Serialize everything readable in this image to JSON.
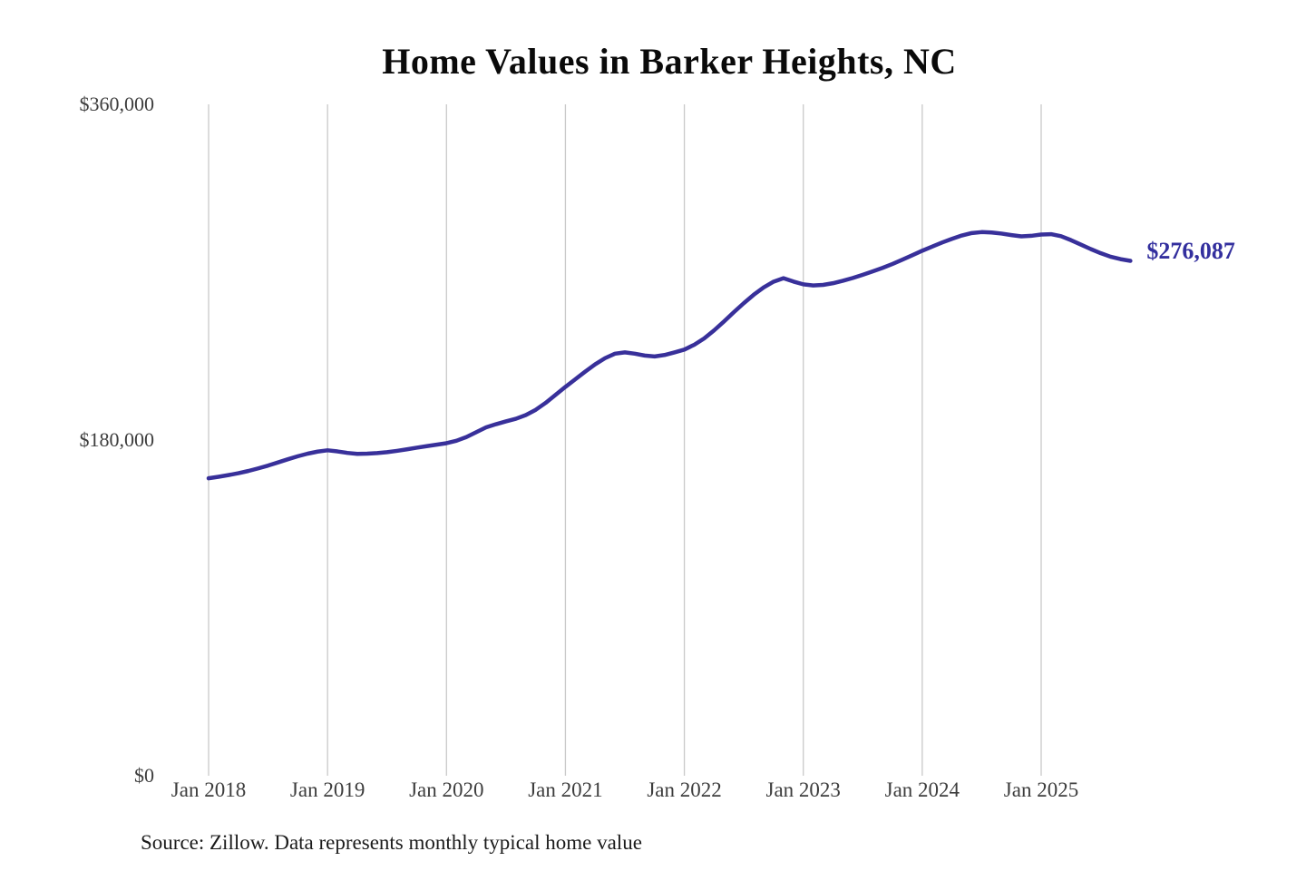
{
  "page": {
    "title": "Home Values in Barker Heights, NC",
    "source_note": "Source: Zillow. Data represents monthly typical home value"
  },
  "colors": {
    "line": "#38309a",
    "grid": "#c9c9c9",
    "tick_label": "#3d3d3d",
    "title": "#0a0a0a",
    "source": "#1b1b1b",
    "end_label": "#332f9e"
  },
  "chart_data": {
    "type": "line",
    "title": "Home Values in Barker Heights, NC",
    "xlabel": "",
    "ylabel": "",
    "x_start_month": "2018-01",
    "x_interval": "monthly",
    "x_tick_labels": [
      "Jan 2018",
      "Jan 2019",
      "Jan 2020",
      "Jan 2021",
      "Jan 2022",
      "Jan 2023",
      "Jan 2024",
      "Jan 2025"
    ],
    "y_ticks": [
      {
        "value": 0,
        "label": "$0"
      },
      {
        "value": 180000,
        "label": "$180,000"
      },
      {
        "value": 360000,
        "label": "$360,000"
      }
    ],
    "ylim": [
      0,
      360000
    ],
    "grid": "vertical-only",
    "legend": "none",
    "end_label": "$276,087",
    "end_value": 276087,
    "series": [
      {
        "name": "Monthly typical home value",
        "values": [
          159500,
          160300,
          161200,
          162200,
          163400,
          164800,
          166300,
          168000,
          169700,
          171300,
          172700,
          173800,
          174500,
          173900,
          173100,
          172600,
          172700,
          173000,
          173500,
          174200,
          175000,
          175900,
          176700,
          177500,
          178300,
          179600,
          181600,
          184200,
          186800,
          188500,
          190000,
          191400,
          193400,
          196200,
          199900,
          204200,
          208500,
          212600,
          216700,
          220600,
          223900,
          226300,
          227000,
          226300,
          225300,
          224800,
          225600,
          227000,
          228500,
          231100,
          234500,
          238800,
          243600,
          248600,
          253400,
          257900,
          261800,
          264900,
          266800,
          265000,
          263500,
          262900,
          263200,
          264100,
          265400,
          266900,
          268600,
          270400,
          272300,
          274400,
          276700,
          279100,
          281500,
          283700,
          285900,
          287900,
          289700,
          291000,
          291500,
          291300,
          290700,
          289900,
          289200,
          289500,
          290200,
          290400,
          289300,
          287200,
          284800,
          282400,
          280200,
          278300,
          277000,
          276087
        ]
      }
    ]
  }
}
